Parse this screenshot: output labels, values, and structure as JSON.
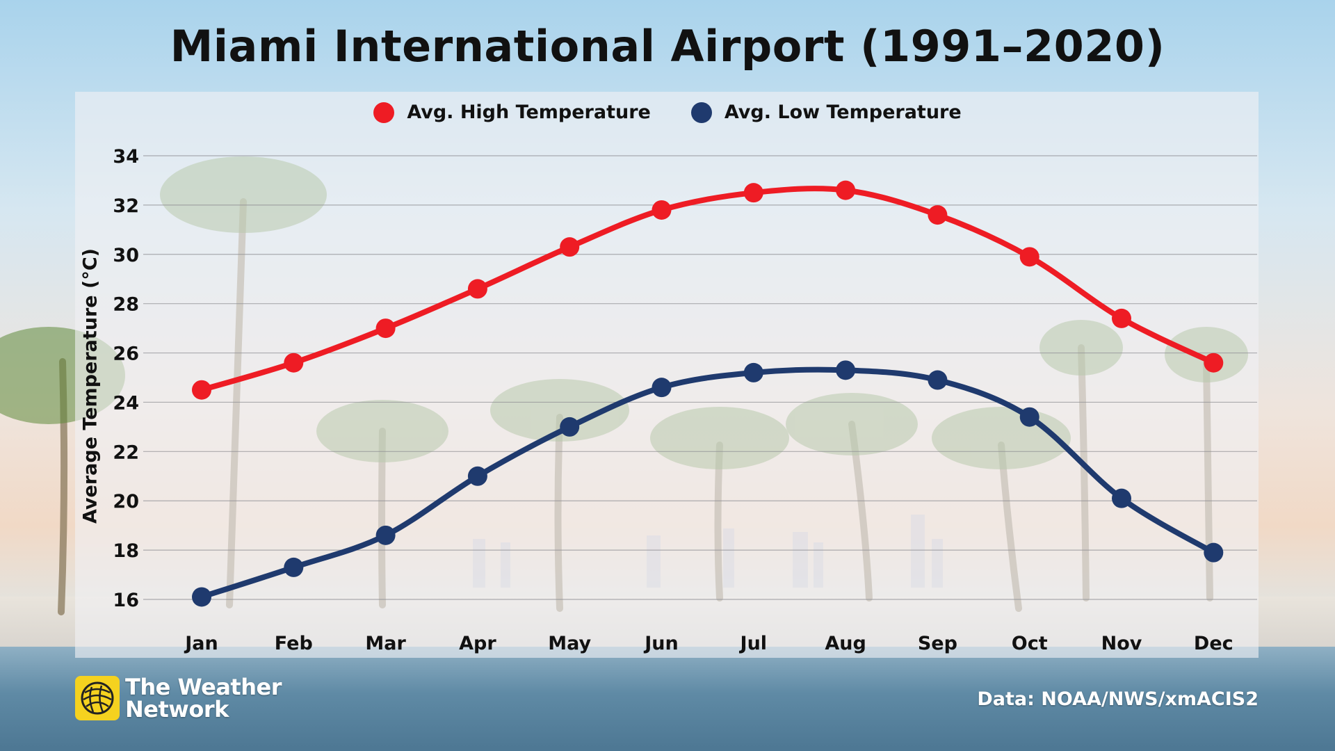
{
  "chart_data": {
    "type": "line",
    "title": "Miami International Airport (1991–2020)",
    "categories": [
      "Jan",
      "Feb",
      "Mar",
      "Apr",
      "May",
      "Jun",
      "Jul",
      "Aug",
      "Sep",
      "Oct",
      "Nov",
      "Dec"
    ],
    "ylabel": "Average Temperature (°C)",
    "xlabel": "",
    "ylim": [
      16,
      34
    ],
    "yticks": [
      16,
      18,
      20,
      22,
      24,
      26,
      28,
      30,
      32,
      34
    ],
    "grid": true,
    "legend_position": "top-center",
    "series": [
      {
        "name": "Avg. High Temperature",
        "color": "#ee1c24",
        "values": [
          24.5,
          25.6,
          27.0,
          28.6,
          30.3,
          31.8,
          32.5,
          32.6,
          31.6,
          29.9,
          27.4,
          25.6
        ]
      },
      {
        "name": "Avg. Low Temperature",
        "color": "#1f3a6e",
        "values": [
          16.1,
          17.3,
          18.6,
          21.0,
          23.0,
          24.6,
          25.2,
          25.3,
          24.9,
          23.4,
          20.1,
          17.9
        ]
      }
    ]
  },
  "branding": {
    "logo_line1": "The Weather",
    "logo_line2": "Network",
    "source": "Data: NOAA/NWS/xmACIS2"
  }
}
